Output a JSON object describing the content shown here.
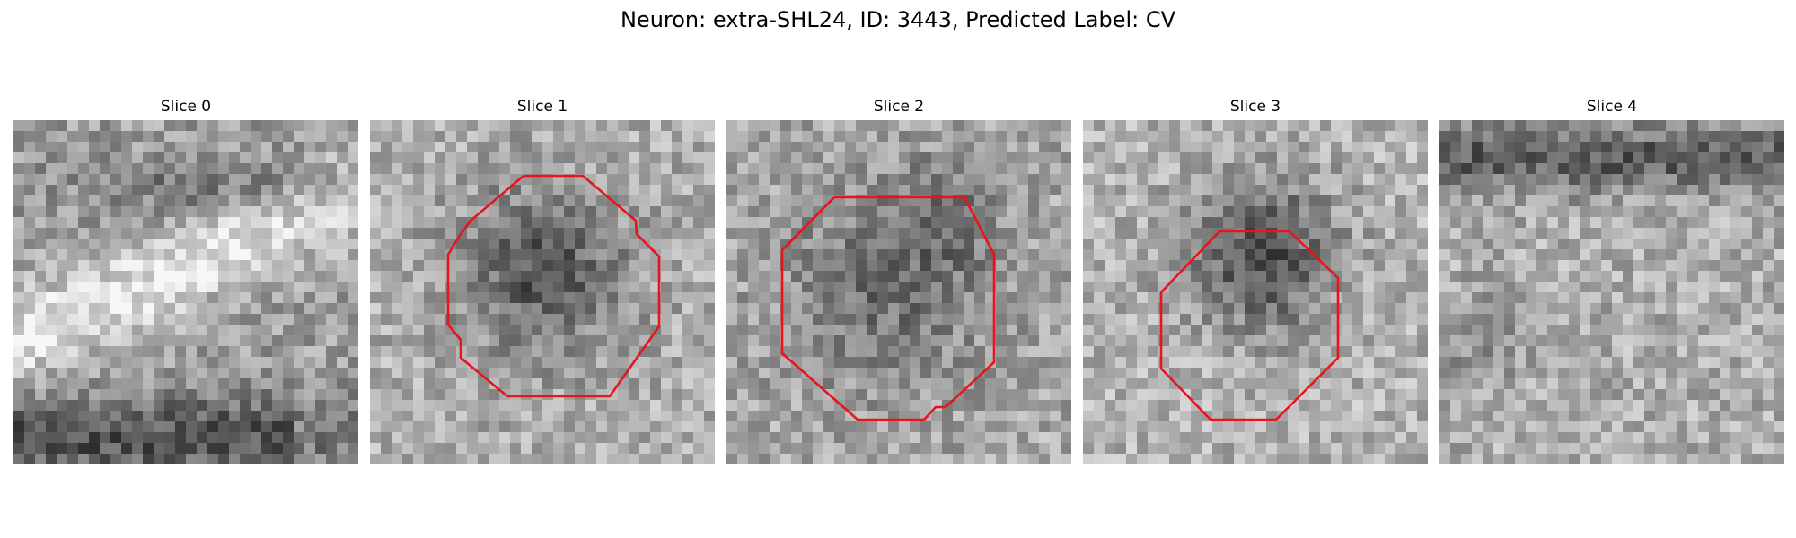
{
  "figure": {
    "title": "Neuron: extra-SHL24, ID: 3443, Predicted Label: CV"
  },
  "panels": [
    {
      "title": "Slice 0",
      "has_contour": false
    },
    {
      "title": "Slice 1",
      "has_contour": true
    },
    {
      "title": "Slice 2",
      "has_contour": true
    },
    {
      "title": "Slice 3",
      "has_contour": true
    },
    {
      "title": "Slice 4",
      "has_contour": false
    }
  ],
  "colors": {
    "contour": "#e8141b",
    "colormap": "grayscale"
  }
}
